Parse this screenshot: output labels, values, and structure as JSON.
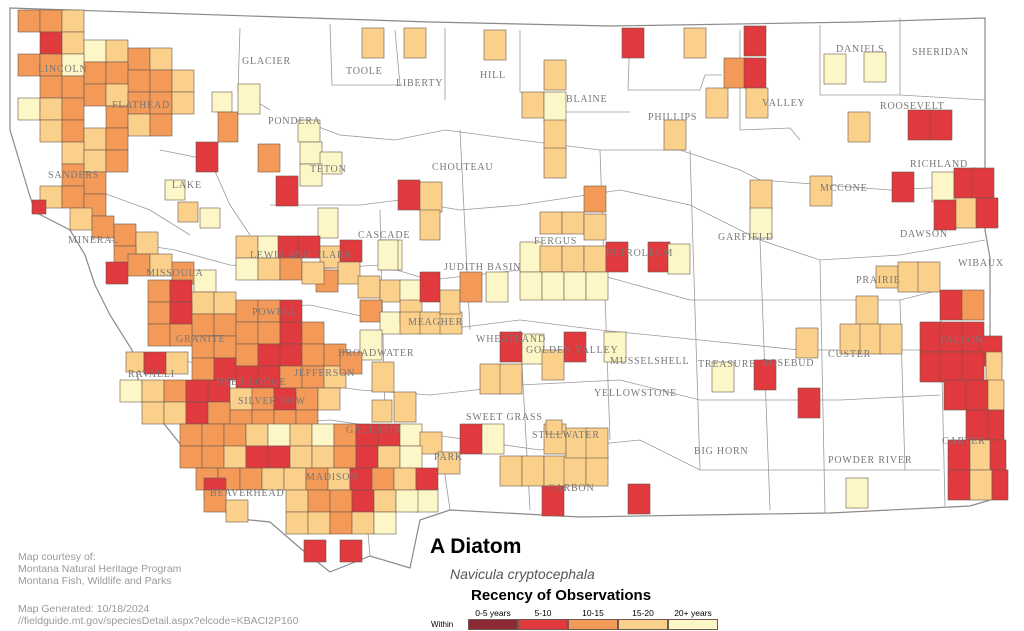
{
  "title": "A Diatom",
  "scientific_name": "Navicula cryptocephala",
  "credit": {
    "line1": "Map courtesy of:",
    "line2": "Montana Natural Heritage Program",
    "line3": "Montana Fish, Wildlife and Parks",
    "generated": "Map Generated: 10/18/2024",
    "url": "//fieldguide.mt.gov/speciesDetail.aspx?elcode=KBACI2P160"
  },
  "legend": {
    "title": "Recency of Observations",
    "within_label": "Within",
    "items": [
      {
        "label": "0-5 years",
        "color": "#8b2a35"
      },
      {
        "label": "5-10",
        "color": "#e0393e"
      },
      {
        "label": "10-15",
        "color": "#f39a58"
      },
      {
        "label": "15-20",
        "color": "#fbd08a"
      },
      {
        "label": "20+ years",
        "color": "#fdf6c7"
      }
    ]
  },
  "counties": [
    "LINCOLN",
    "FLATHEAD",
    "GLACIER",
    "TOOLE",
    "LIBERTY",
    "HILL",
    "BLAINE",
    "PHILLIPS",
    "VALLEY",
    "DANIELS",
    "SHERIDAN",
    "ROOSEVELT",
    "PONDERA",
    "TETON",
    "SANDERS",
    "LAKE",
    "CHOUTEAU",
    "RICHLAND",
    "MCCONE",
    "MINERAL",
    "CASCADE",
    "LEWIS AND CLARK",
    "FERGUS",
    "PETROLEUM",
    "GARFIELD",
    "DAWSON",
    "WIBAUX",
    "MISSOULA",
    "JUDITH BASIN",
    "PRAIRIE",
    "POWELL",
    "MEAGHER",
    "WHEATLAND",
    "GOLDEN VALLEY",
    "MUSSELSHELL",
    "FALLON",
    "GRANITE",
    "BROADWATER",
    "CUSTER",
    "RAVALLI",
    "DEER LODGE",
    "JEFFERSON",
    "TREASURE",
    "ROSEBUD",
    "SILVER BOW",
    "YELLOWSTONE",
    "SWEET GRASS",
    "GALLATIN",
    "PARK",
    "STILLWATER",
    "BIG HORN",
    "CARTER",
    "POWDER RIVER",
    "MADISON",
    "CARBON",
    "BEAVERHEAD"
  ]
}
